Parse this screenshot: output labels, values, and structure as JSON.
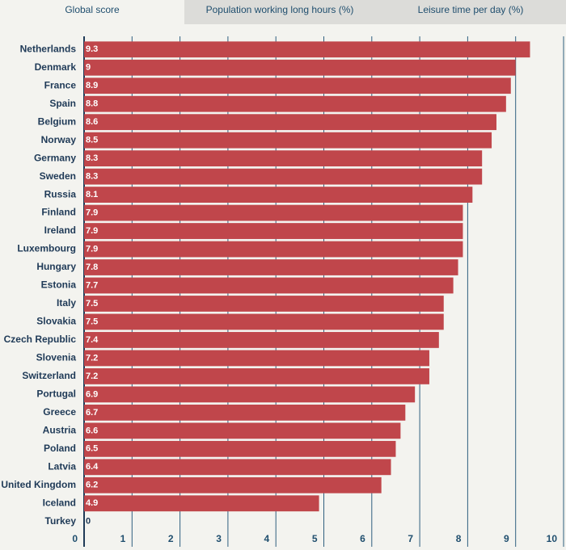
{
  "tabs": [
    "Global score",
    "Population working long hours (%)",
    "Leisure time per day (%)"
  ],
  "chart_data": {
    "type": "bar",
    "orientation": "horizontal",
    "categories": [
      "Netherlands",
      "Denmark",
      "France",
      "Spain",
      "Belgium",
      "Norway",
      "Germany",
      "Sweden",
      "Russia",
      "Finland",
      "Ireland",
      "Luxembourg",
      "Hungary",
      "Estonia",
      "Italy",
      "Slovakia",
      "Czech Republic",
      "Slovenia",
      "Switzerland",
      "Portugal",
      "Greece",
      "Austria",
      "Poland",
      "Latvia",
      "United Kingdom",
      "Iceland",
      "Turkey"
    ],
    "values": [
      9.3,
      9,
      8.9,
      8.8,
      8.6,
      8.5,
      8.3,
      8.3,
      8.1,
      7.9,
      7.9,
      7.9,
      7.8,
      7.7,
      7.5,
      7.5,
      7.4,
      7.2,
      7.2,
      6.9,
      6.7,
      6.6,
      6.5,
      6.4,
      6.2,
      4.9,
      0
    ],
    "color": "#c0464b",
    "xlim": [
      0,
      10
    ],
    "xticks": [
      0,
      1,
      2,
      3,
      4,
      5,
      6,
      7,
      8,
      9,
      10
    ],
    "grid": true
  }
}
